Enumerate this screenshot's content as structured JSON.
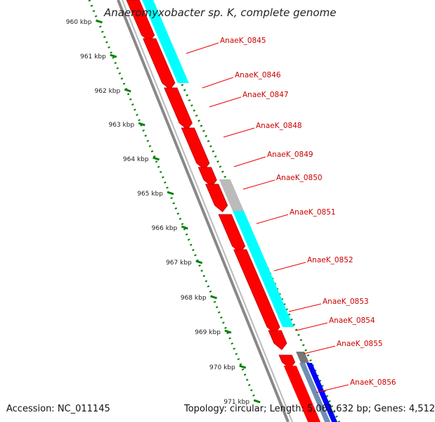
{
  "title": "Anaeromyxobacter sp. K, complete genome",
  "footer": {
    "accession": "Accession: NC_011145",
    "topology": "Topology: circular; Length: 5,061,632 bp; Genes: 4,512"
  },
  "ruler": {
    "labels": [
      "960 kbp",
      "961 kbp",
      "962 kbp",
      "963 kbp",
      "964 kbp",
      "965 kbp",
      "966 kbp",
      "967 kbp",
      "968 kbp",
      "969 kbp",
      "970 kbp",
      "971 kbp"
    ]
  },
  "genes": [
    {
      "id": "AnaeK_0845"
    },
    {
      "id": "AnaeK_0846"
    },
    {
      "id": "AnaeK_0847"
    },
    {
      "id": "AnaeK_0848"
    },
    {
      "id": "AnaeK_0849"
    },
    {
      "id": "AnaeK_0850"
    },
    {
      "id": "AnaeK_0851"
    },
    {
      "id": "AnaeK_0852"
    },
    {
      "id": "AnaeK_0853"
    },
    {
      "id": "AnaeK_0854"
    },
    {
      "id": "AnaeK_0855"
    },
    {
      "id": "AnaeK_0856"
    }
  ],
  "colors": {
    "gene_red": "#ff0000",
    "gene_red_edge": "#c80000",
    "feature_cyan": "#00ffff",
    "feature_gray": "#bbbbbb",
    "feature_darkgray": "#777777",
    "feature_blue": "#0000ff",
    "feature_steelblue": "#6f8fb5",
    "backbone": "#888888",
    "ruler_dots": "#008000",
    "label_red": "#cc0000",
    "leader": "#ee0000"
  }
}
